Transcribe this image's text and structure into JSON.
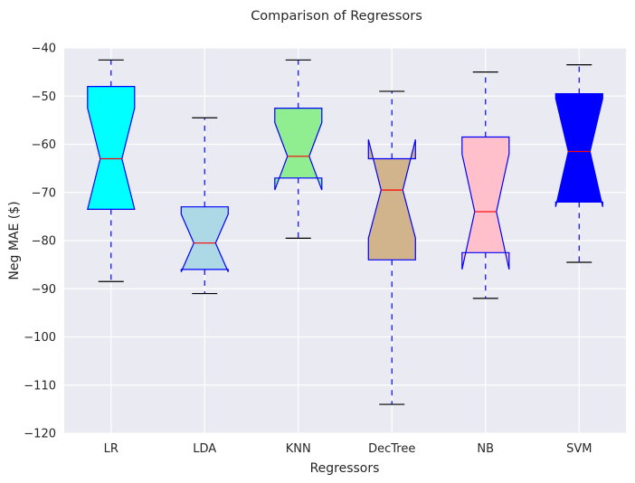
{
  "chart_data": {
    "type": "box",
    "title": "Comparison of Regressors",
    "xlabel": "Regressors",
    "ylabel": "Neg MAE ($)",
    "ylim": [
      -120,
      -40
    ],
    "yticks": [
      -40,
      -50,
      -60,
      -70,
      -80,
      -90,
      -100,
      -110,
      -120
    ],
    "grid": true,
    "notched": true,
    "categories": [
      "LR",
      "LDA",
      "KNN",
      "DecTree",
      "NB",
      "SVM"
    ],
    "boxes": [
      {
        "name": "LR",
        "whisker_low": -88.5,
        "q1": -73.5,
        "median": -63.0,
        "q3": -48.0,
        "whisker_high": -42.5,
        "notch_low": -73.5,
        "notch_high": -52.5,
        "color": "#00ffff"
      },
      {
        "name": "LDA",
        "whisker_low": -91.0,
        "q1": -86.0,
        "median": -80.5,
        "q3": -73.0,
        "whisker_high": -54.5,
        "notch_low": -86.5,
        "notch_high": -74.5,
        "color": "#add8e6"
      },
      {
        "name": "KNN",
        "whisker_low": -79.5,
        "q1": -67.0,
        "median": -62.5,
        "q3": -52.5,
        "whisker_high": -42.5,
        "notch_low": -69.5,
        "notch_high": -55.5,
        "color": "#90ee90"
      },
      {
        "name": "DecTree",
        "whisker_low": -114.0,
        "q1": -84.0,
        "median": -69.5,
        "q3": -63.0,
        "whisker_high": -49.0,
        "notch_low": -79.5,
        "notch_high": -59.0,
        "color": "#d2b48c"
      },
      {
        "name": "NB",
        "whisker_low": -92.0,
        "q1": -82.5,
        "median": -74.0,
        "q3": -58.5,
        "whisker_high": -45.0,
        "notch_low": -86.0,
        "notch_high": -62.0,
        "color": "#ffc0cb"
      },
      {
        "name": "SVM",
        "whisker_low": -84.5,
        "q1": -72.0,
        "median": -61.5,
        "q3": -49.5,
        "whisker_high": -43.5,
        "notch_low": -73.0,
        "notch_high": -50.5,
        "color": "#0000ff"
      }
    ],
    "style": {
      "plot_background": "#eaeaf2",
      "grid_color": "#ffffff",
      "box_edge_color": "#0000ff",
      "median_color": "#ff0000",
      "whisker_color": "#0000ff",
      "cap_color": "#000000"
    }
  }
}
